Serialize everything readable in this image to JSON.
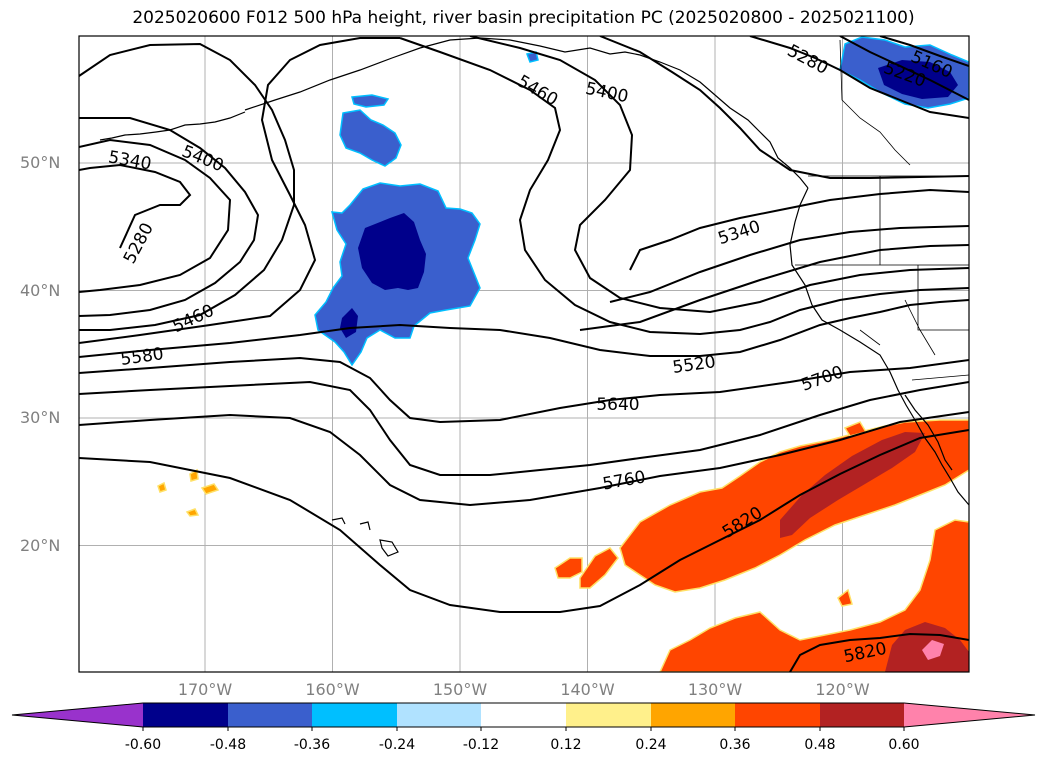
{
  "title": "2025020600 F012 500 hPa height, river basin precipitation PC (2025020800 - 2025021100)",
  "lat_ticks": [
    {
      "label": "50°N",
      "lat": 50
    },
    {
      "label": "40°N",
      "lat": 40
    },
    {
      "label": "30°N",
      "lat": 30
    },
    {
      "label": "20°N",
      "lat": 20
    }
  ],
  "lon_ticks": [
    {
      "label": "170°W",
      "lon": -170
    },
    {
      "label": "160°W",
      "lon": -160
    },
    {
      "label": "150°W",
      "lon": -150
    },
    {
      "label": "140°W",
      "lon": -140
    },
    {
      "label": "130°W",
      "lon": -130
    },
    {
      "label": "120°W",
      "lon": -120
    }
  ],
  "contour_labels": [
    "5340",
    "5400",
    "5280",
    "5460",
    "5580",
    "5460",
    "5400",
    "5280",
    "5160",
    "5220",
    "5340",
    "5520",
    "5700",
    "5640",
    "5760",
    "5820",
    "5820"
  ],
  "colorbar": {
    "colors": [
      "#9932cc",
      "#00008b",
      "#3a5fcd",
      "#00bfff",
      "#b0e2ff",
      "#ffffff",
      "#fff08b",
      "#ffa500",
      "#ff4500",
      "#b22222",
      "#ff82ab"
    ],
    "labels": [
      "-0.60",
      "-0.48",
      "-0.36",
      "-0.24",
      "-0.12",
      "0.12",
      "0.24",
      "0.36",
      "0.48",
      "0.60"
    ]
  }
}
